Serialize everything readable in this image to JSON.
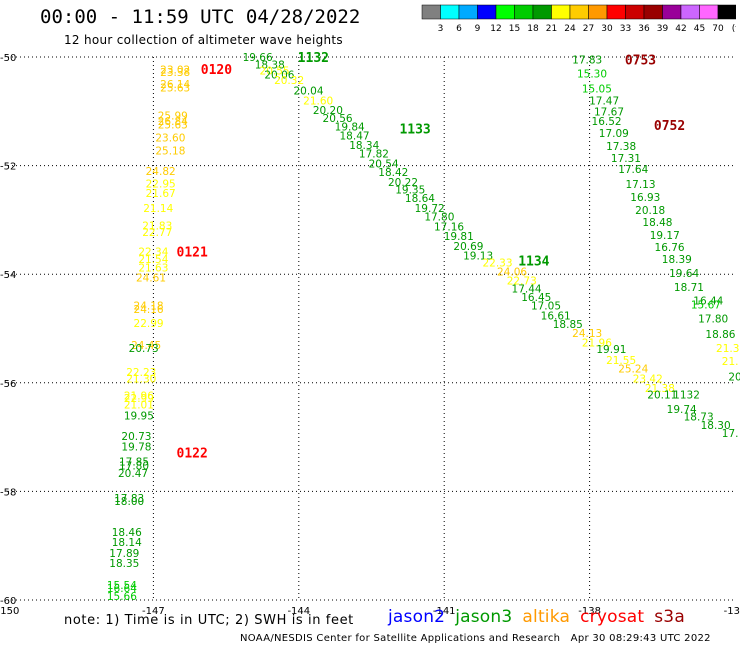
{
  "header": {
    "title": "00:00 - 11:59 UTC 04/28/2022",
    "subtitle": "12 hour collection of altimeter wave heights"
  },
  "colorbar": {
    "colors": [
      "#808080",
      "#00ffff",
      "#00aaff",
      "#0000ff",
      "#00ff00",
      "#00cc00",
      "#009900",
      "#ffff00",
      "#ffcc00",
      "#ff9900",
      "#ff0000",
      "#cc0000",
      "#990000",
      "#990099",
      "#cc66ff",
      "#ff66ff",
      "#000000"
    ],
    "labels": [
      "3",
      "6",
      "9",
      "12",
      "15",
      "18",
      "21",
      "24",
      "27",
      "30",
      "33",
      "36",
      "39",
      "42",
      "45",
      "70",
      "(ft)"
    ]
  },
  "map": {
    "lon_range": [
      -150,
      -135
    ],
    "lat_range": [
      -60,
      -50
    ],
    "x_ticks": [
      {
        "lon": -150,
        "label": "-150"
      },
      {
        "lon": -147,
        "label": "-147"
      },
      {
        "lon": -144,
        "label": "-144"
      },
      {
        "lon": -141,
        "label": "-141"
      },
      {
        "lon": -138,
        "label": "-138"
      },
      {
        "lon": -135,
        "label": "-135"
      }
    ],
    "y_ticks": [
      {
        "lat": -50,
        "label": "-50"
      },
      {
        "lat": -52,
        "label": "-52"
      },
      {
        "lat": -54,
        "label": "-54"
      },
      {
        "lat": -56,
        "label": "-56"
      },
      {
        "lat": -58,
        "label": "-58"
      },
      {
        "lat": -60,
        "label": "-60"
      }
    ]
  },
  "passes": [
    {
      "satellite": "saral",
      "time": "0120",
      "time_color": "#ff0000",
      "time_lon": -145.7,
      "time_lat": -50.22,
      "points": [
        {
          "lon": -146.55,
          "lat": -50.23,
          "v": "23.02",
          "c": "#ffcc00"
        },
        {
          "lon": -146.55,
          "lat": -50.28,
          "v": "23.38",
          "c": "#ffcc00"
        },
        {
          "lon": -146.55,
          "lat": -50.5,
          "v": "26.14",
          "c": "#ffcc00"
        },
        {
          "lon": -146.55,
          "lat": -50.56,
          "v": "25.63",
          "c": "#ffcc00"
        },
        {
          "lon": -146.6,
          "lat": -51.08,
          "v": "25.99",
          "c": "#ffcc00"
        },
        {
          "lon": -146.6,
          "lat": -51.18,
          "v": "26.84",
          "c": "#ffcc00"
        },
        {
          "lon": -146.6,
          "lat": -51.24,
          "v": "25.63",
          "c": "#ffcc00"
        },
        {
          "lon": -146.65,
          "lat": -51.48,
          "v": "23.60",
          "c": "#ffcc00"
        },
        {
          "lon": -146.65,
          "lat": -51.72,
          "v": "25.18",
          "c": "#ffcc00"
        }
      ]
    },
    {
      "satellite": "saral",
      "time": "0121",
      "time_color": "#ff0000",
      "time_lon": -146.2,
      "time_lat": -53.58,
      "points": [
        {
          "lon": -146.85,
          "lat": -52.1,
          "v": "24.82",
          "c": "#ffcc00"
        },
        {
          "lon": -146.85,
          "lat": -52.33,
          "v": "22.95",
          "c": "#ffff00"
        },
        {
          "lon": -146.85,
          "lat": -52.5,
          "v": "21.67",
          "c": "#ffff00"
        },
        {
          "lon": -146.9,
          "lat": -52.78,
          "v": "21.14",
          "c": "#ffff00"
        },
        {
          "lon": -146.92,
          "lat": -53.1,
          "v": "21.83",
          "c": "#ffff00"
        },
        {
          "lon": -146.92,
          "lat": -53.22,
          "v": "22.77",
          "c": "#ffff00"
        },
        {
          "lon": -147.0,
          "lat": -53.58,
          "v": "22.34",
          "c": "#ffff00"
        },
        {
          "lon": -147.0,
          "lat": -53.72,
          "v": "21.54",
          "c": "#ffff00"
        },
        {
          "lon": -147.0,
          "lat": -53.88,
          "v": "21.63",
          "c": "#ffff00"
        },
        {
          "lon": -147.05,
          "lat": -54.06,
          "v": "24.61",
          "c": "#ffcc00"
        },
        {
          "lon": -147.1,
          "lat": -54.58,
          "v": "24.18",
          "c": "#ffcc00"
        },
        {
          "lon": -147.1,
          "lat": -54.64,
          "v": "24.16",
          "c": "#ffcc00"
        },
        {
          "lon": -147.1,
          "lat": -54.9,
          "v": "22.99",
          "c": "#ffff00"
        },
        {
          "lon": -147.15,
          "lat": -55.3,
          "v": "24.45",
          "c": "#ffcc00"
        },
        {
          "lon": -147.2,
          "lat": -55.36,
          "v": "20.73",
          "c": "#009900"
        },
        {
          "lon": -147.25,
          "lat": -55.8,
          "v": "22.23",
          "c": "#ffff00"
        },
        {
          "lon": -147.25,
          "lat": -55.92,
          "v": "21.30",
          "c": "#ffff00"
        },
        {
          "lon": -147.3,
          "lat": -56.23,
          "v": "21.96",
          "c": "#ffff00"
        },
        {
          "lon": -147.3,
          "lat": -56.28,
          "v": "22.99",
          "c": "#ffff00"
        },
        {
          "lon": -147.3,
          "lat": -56.4,
          "v": "21.01",
          "c": "#ffff00"
        },
        {
          "lon": -147.3,
          "lat": -56.6,
          "v": "19.95",
          "c": "#009900"
        }
      ]
    },
    {
      "satellite": "saral",
      "time": "0122",
      "time_color": "#ff0000",
      "time_lon": -146.2,
      "time_lat": -57.28,
      "points": [
        {
          "lon": -147.35,
          "lat": -56.98,
          "v": "20.73",
          "c": "#009900"
        },
        {
          "lon": -147.35,
          "lat": -57.17,
          "v": "19.78",
          "c": "#009900"
        },
        {
          "lon": -147.4,
          "lat": -57.45,
          "v": "17.85",
          "c": "#009900"
        },
        {
          "lon": -147.4,
          "lat": -57.52,
          "v": "17.80",
          "c": "#009900"
        },
        {
          "lon": -147.42,
          "lat": -57.66,
          "v": "20.47",
          "c": "#009900"
        },
        {
          "lon": -147.5,
          "lat": -58.12,
          "v": "17.83",
          "c": "#009900"
        },
        {
          "lon": -147.5,
          "lat": -58.18,
          "v": "18.00",
          "c": "#009900"
        },
        {
          "lon": -147.55,
          "lat": -58.75,
          "v": "18.46",
          "c": "#009900"
        },
        {
          "lon": -147.55,
          "lat": -58.93,
          "v": "18.14",
          "c": "#009900"
        },
        {
          "lon": -147.6,
          "lat": -59.13,
          "v": "17.89",
          "c": "#009900"
        },
        {
          "lon": -147.6,
          "lat": -59.32,
          "v": "18.35",
          "c": "#009900"
        },
        {
          "lon": -147.65,
          "lat": -59.72,
          "v": "15.54",
          "c": "#00cc00"
        },
        {
          "lon": -147.65,
          "lat": -59.78,
          "v": "16.64",
          "c": "#00cc00"
        },
        {
          "lon": -147.65,
          "lat": -59.93,
          "v": "15.66",
          "c": "#00cc00"
        },
        {
          "lon": -147.7,
          "lat": -60.32,
          "v": "15.69",
          "c": "#00cc00"
        },
        {
          "lon": -147.8,
          "lat": -60.7,
          "v": "15.25",
          "c": "#00cc00"
        }
      ]
    },
    {
      "satellite": "jason3",
      "time": "1132",
      "time_color": "#009900",
      "time_lon": -143.7,
      "time_lat": -50.0,
      "points": [
        {
          "lon": -144.85,
          "lat": -50.0,
          "v": "19.66",
          "c": "#009900"
        },
        {
          "lon": -144.6,
          "lat": -50.14,
          "v": "18.38",
          "c": "#009900"
        },
        {
          "lon": -144.5,
          "lat": -50.25,
          "v": "20.55",
          "c": "#ffff00"
        },
        {
          "lon": -144.4,
          "lat": -50.32,
          "v": "20.06",
          "c": "#009900"
        },
        {
          "lon": -144.2,
          "lat": -50.42,
          "v": "20.32",
          "c": "#ffff00"
        },
        {
          "lon": -143.8,
          "lat": -50.62,
          "v": "20.04",
          "c": "#009900"
        },
        {
          "lon": -143.6,
          "lat": -50.8,
          "v": "21.60",
          "c": "#ffff00"
        },
        {
          "lon": -143.4,
          "lat": -50.98,
          "v": "20.20",
          "c": "#009900"
        },
        {
          "lon": -143.2,
          "lat": -51.12,
          "v": "20.56",
          "c": "#009900"
        },
        {
          "lon": -142.95,
          "lat": -51.28,
          "v": "19.84",
          "c": "#009900"
        },
        {
          "lon": -142.85,
          "lat": -51.45,
          "v": "18.47",
          "c": "#009900"
        },
        {
          "lon": -142.65,
          "lat": -51.62,
          "v": "18.34",
          "c": "#009900"
        },
        {
          "lon": -142.45,
          "lat": -51.78,
          "v": "17.82",
          "c": "#009900"
        },
        {
          "lon": -142.25,
          "lat": -51.96,
          "v": "20.54",
          "c": "#009900"
        },
        {
          "lon": -142.05,
          "lat": -52.12,
          "v": "18.42",
          "c": "#009900"
        },
        {
          "lon": -141.85,
          "lat": -52.3,
          "v": "20.22",
          "c": "#009900"
        },
        {
          "lon": -141.7,
          "lat": -52.44,
          "v": "19.35",
          "c": "#009900"
        },
        {
          "lon": -141.5,
          "lat": -52.6,
          "v": "18.64",
          "c": "#009900"
        },
        {
          "lon": -141.3,
          "lat": -52.78,
          "v": "19.72",
          "c": "#009900"
        },
        {
          "lon": -141.1,
          "lat": -52.94,
          "v": "17.80",
          "c": "#009900"
        },
        {
          "lon": -140.9,
          "lat": -53.12,
          "v": "17.16",
          "c": "#009900"
        },
        {
          "lon": -140.7,
          "lat": -53.3,
          "v": "19.81",
          "c": "#009900"
        },
        {
          "lon": -140.5,
          "lat": -53.48,
          "v": "20.69",
          "c": "#009900"
        },
        {
          "lon": -140.3,
          "lat": -53.66,
          "v": "19.13",
          "c": "#009900"
        }
      ]
    },
    {
      "satellite": "jason3",
      "time": "1133",
      "time_color": "#009900",
      "time_lon": -141.6,
      "time_lat": -51.32,
      "points": []
    },
    {
      "satellite": "jason3",
      "time": "1134",
      "time_color": "#009900",
      "time_lon": -139.15,
      "time_lat": -53.75,
      "points": [
        {
          "lon": -139.9,
          "lat": -53.78,
          "v": "22.33",
          "c": "#ffff00"
        },
        {
          "lon": -139.6,
          "lat": -53.95,
          "v": "24.06",
          "c": "#ffcc00"
        },
        {
          "lon": -139.4,
          "lat": -54.12,
          "v": "22.73",
          "c": "#ffff00"
        },
        {
          "lon": -139.3,
          "lat": -54.26,
          "v": "17.44",
          "c": "#009900"
        },
        {
          "lon": -139.1,
          "lat": -54.42,
          "v": "16.45",
          "c": "#009900"
        },
        {
          "lon": -138.9,
          "lat": -54.58,
          "v": "17.05",
          "c": "#009900"
        },
        {
          "lon": -138.7,
          "lat": -54.76,
          "v": "16.61",
          "c": "#009900"
        },
        {
          "lon": -138.45,
          "lat": -54.92,
          "v": "18.85",
          "c": "#009900"
        },
        {
          "lon": -138.05,
          "lat": -55.08,
          "v": "24.13",
          "c": "#ffcc00"
        },
        {
          "lon": -137.85,
          "lat": -55.26,
          "v": "21.96",
          "c": "#ffff00"
        },
        {
          "lon": -137.55,
          "lat": -55.38,
          "v": "19.91",
          "c": "#009900"
        },
        {
          "lon": -137.35,
          "lat": -55.58,
          "v": "21.55",
          "c": "#ffff00"
        },
        {
          "lon": -137.1,
          "lat": -55.74,
          "v": "25.24",
          "c": "#ffcc00"
        },
        {
          "lon": -136.8,
          "lat": -55.92,
          "v": "23.42",
          "c": "#ffff00"
        },
        {
          "lon": -136.55,
          "lat": -56.1,
          "v": "21.38",
          "c": "#ffff00"
        },
        {
          "lon": -136.5,
          "lat": -56.22,
          "v": "20.11",
          "c": "#009900"
        },
        {
          "lon": -136.0,
          "lat": -56.22,
          "v": "1132",
          "c": "#009900"
        },
        {
          "lon": -136.1,
          "lat": -56.48,
          "v": "19.74",
          "c": "#009900"
        },
        {
          "lon": -135.75,
          "lat": -56.62,
          "v": "18.73",
          "c": "#009900"
        },
        {
          "lon": -135.4,
          "lat": -56.78,
          "v": "18.30",
          "c": "#009900"
        },
        {
          "lon": -135.1,
          "lat": -56.92,
          "v": "17.",
          "c": "#009900"
        }
      ]
    },
    {
      "satellite": "cryosat",
      "time": "0753",
      "time_color": "#990000",
      "time_lon": -136.95,
      "time_lat": -50.05,
      "points": [
        {
          "lon": -138.05,
          "lat": -50.05,
          "v": "17.83",
          "c": "#009900"
        },
        {
          "lon": -137.95,
          "lat": -50.3,
          "v": "15.30",
          "c": "#00cc00"
        },
        {
          "lon": -137.85,
          "lat": -50.58,
          "v": "15.05",
          "c": "#00cc00"
        },
        {
          "lon": -137.7,
          "lat": -50.8,
          "v": "17.47",
          "c": "#009900"
        },
        {
          "lon": -137.6,
          "lat": -51.0,
          "v": "17.67",
          "c": "#009900"
        },
        {
          "lon": -137.65,
          "lat": -51.18,
          "v": "16.52",
          "c": "#009900"
        },
        {
          "lon": -137.5,
          "lat": -51.4,
          "v": "17.09",
          "c": "#009900"
        },
        {
          "lon": -137.35,
          "lat": -51.64,
          "v": "17.38",
          "c": "#009900"
        },
        {
          "lon": -137.25,
          "lat": -51.86,
          "v": "17.31",
          "c": "#009900"
        },
        {
          "lon": -137.1,
          "lat": -52.06,
          "v": "17.64",
          "c": "#009900"
        },
        {
          "lon": -136.95,
          "lat": -52.34,
          "v": "17.13",
          "c": "#009900"
        },
        {
          "lon": -136.85,
          "lat": -52.58,
          "v": "16.93",
          "c": "#009900"
        },
        {
          "lon": -136.75,
          "lat": -52.82,
          "v": "20.18",
          "c": "#009900"
        },
        {
          "lon": -136.6,
          "lat": -53.04,
          "v": "18.48",
          "c": "#009900"
        },
        {
          "lon": -136.45,
          "lat": -53.28,
          "v": "19.17",
          "c": "#009900"
        },
        {
          "lon": -136.35,
          "lat": -53.5,
          "v": "16.76",
          "c": "#009900"
        },
        {
          "lon": -136.2,
          "lat": -53.72,
          "v": "18.39",
          "c": "#009900"
        },
        {
          "lon": -136.05,
          "lat": -53.98,
          "v": "19.64",
          "c": "#009900"
        },
        {
          "lon": -135.95,
          "lat": -54.24,
          "v": "18.71",
          "c": "#009900"
        },
        {
          "lon": -135.55,
          "lat": -54.48,
          "v": "16.44",
          "c": "#009900"
        },
        {
          "lon": -135.6,
          "lat": -54.56,
          "v": "15.67",
          "c": "#00cc00"
        },
        {
          "lon": -135.45,
          "lat": -54.82,
          "v": "17.80",
          "c": "#009900"
        },
        {
          "lon": -135.3,
          "lat": -55.1,
          "v": "18.86",
          "c": "#009900"
        },
        {
          "lon": -135.15,
          "lat": -55.36,
          "v": "21.3",
          "c": "#ffff00"
        },
        {
          "lon": -135.1,
          "lat": -55.6,
          "v": "21.",
          "c": "#ffff00"
        },
        {
          "lon": -135.0,
          "lat": -55.88,
          "v": "20",
          "c": "#009900"
        }
      ]
    },
    {
      "satellite": "cryosat",
      "time": "0752",
      "time_color": "#990000",
      "time_lon": -136.35,
      "time_lat": -51.25,
      "points": []
    }
  ],
  "legend": {
    "note": "note: 1) Time is in UTC; 2) SWH is in feet",
    "satellites": [
      {
        "name": "jason2",
        "color": "#0000ff"
      },
      {
        "name": "jason3",
        "color": "#009900"
      },
      {
        "name": "altika",
        "color": "#ff9900"
      },
      {
        "name": "cryosat",
        "color": "#ff0000"
      },
      {
        "name": "s3a",
        "color": "#990000"
      }
    ],
    "credit": "NOAA/NESDIS Center for Satellite Applications and Research   Apr 30 08:29:43 UTC 2022"
  }
}
